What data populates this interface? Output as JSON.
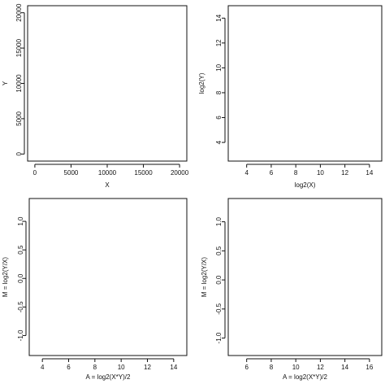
{
  "chart_data": [
    {
      "type": "scatter",
      "title": "",
      "xlabel": "X",
      "ylabel": "Y",
      "xlim": [
        -1000,
        21000
      ],
      "ylim": [
        -1000,
        21000
      ],
      "xticks": [
        0,
        5000,
        10000,
        15000,
        20000
      ],
      "yticks": [
        0,
        5000,
        10000,
        15000,
        20000
      ],
      "xtick_labels": [
        "0",
        "5000",
        "10000",
        "15000",
        "20000"
      ],
      "ytick_labels": [
        "0",
        "5000",
        "10000",
        "15000",
        "20000"
      ],
      "series": [],
      "grid": false
    },
    {
      "type": "scatter",
      "title": "",
      "xlabel": "log2(X)",
      "ylabel": "log2(Y)",
      "xlim": [
        2.5,
        15
      ],
      "ylim": [
        2.5,
        15
      ],
      "xticks": [
        4,
        6,
        8,
        10,
        12,
        14
      ],
      "yticks": [
        4,
        6,
        8,
        10,
        12,
        14
      ],
      "xtick_labels": [
        "4",
        "6",
        "8",
        "10",
        "12",
        "14"
      ],
      "ytick_labels": [
        "4",
        "6",
        "8",
        "10",
        "12",
        "14"
      ],
      "series": [],
      "grid": false
    },
    {
      "type": "scatter",
      "title": "",
      "xlabel": "A = log2(X*Y)/2",
      "ylabel": "M = log2(Y/X)",
      "xlim": [
        3,
        15
      ],
      "ylim": [
        -1.35,
        1.4
      ],
      "xticks": [
        4,
        6,
        8,
        10,
        12,
        14
      ],
      "yticks": [
        -1.0,
        -0.5,
        0.0,
        0.5,
        1.0
      ],
      "xtick_labels": [
        "4",
        "6",
        "8",
        "10",
        "12",
        "14"
      ],
      "ytick_labels": [
        "-1.0",
        "-0.5",
        "0.0",
        "0.5",
        "1.0"
      ],
      "series": [],
      "grid": false
    },
    {
      "type": "scatter",
      "title": "",
      "xlabel": "A = log2(X*Y)/2",
      "ylabel": "M = log2(Y/X)",
      "xlim": [
        4.5,
        17
      ],
      "ylim": [
        -1.3,
        1.4
      ],
      "xticks": [
        6,
        8,
        10,
        12,
        14,
        16
      ],
      "yticks": [
        -1.0,
        -0.5,
        0.0,
        0.5,
        1.0
      ],
      "xtick_labels": [
        "6",
        "8",
        "10",
        "12",
        "14",
        "16"
      ],
      "ytick_labels": [
        "-1.0",
        "-0.5",
        "0.0",
        "0.5",
        "1.0"
      ],
      "series": [],
      "grid": false
    }
  ]
}
